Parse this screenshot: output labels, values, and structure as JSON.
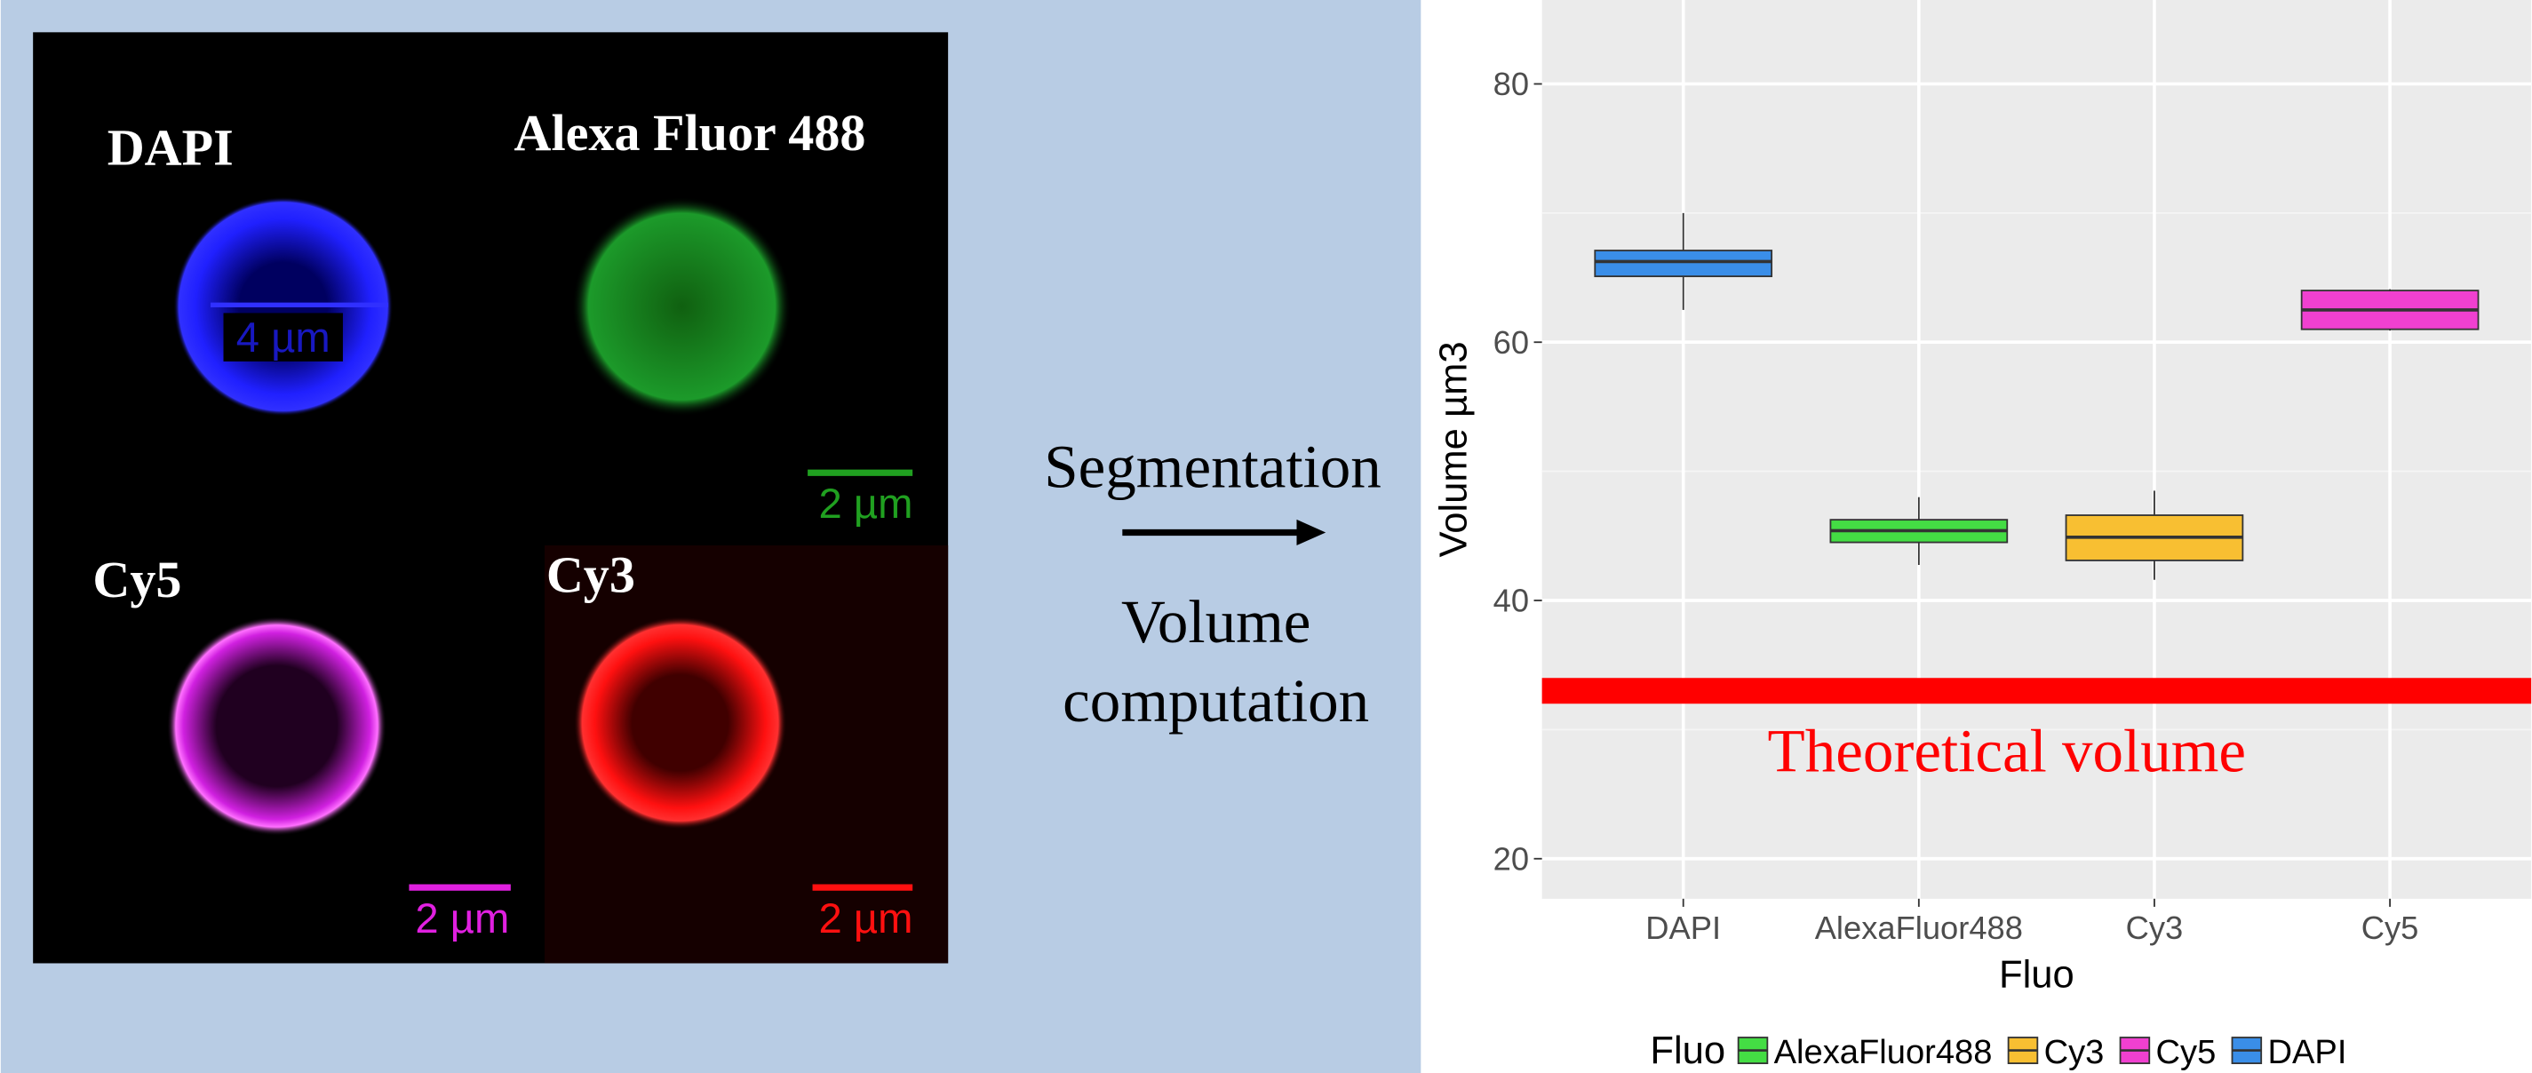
{
  "microscopy": {
    "panels": [
      "DAPI",
      "Alexa Fluor 488",
      "Cy5",
      "Cy3"
    ],
    "scale_labels": [
      "4 µm",
      "2 µm",
      "2 µm",
      "2 µm"
    ]
  },
  "process": {
    "step1": "Segmentation",
    "step2_line1": "Volume",
    "step2_line2": "computation"
  },
  "chart_data": {
    "type": "box",
    "x_label": "Fluo",
    "y_label": "Volume µm3",
    "categories": [
      "DAPI",
      "AlexaFluor488",
      "Cy3",
      "Cy5"
    ],
    "series": [
      {
        "name": "DAPI",
        "color": "#3a8ee8",
        "min": 62.5,
        "q1": 65.1,
        "median": 66.25,
        "q3": 67.1,
        "max": 70
      },
      {
        "name": "AlexaFluor488",
        "color": "#44dd44",
        "min": 42.75,
        "q1": 44.5,
        "median": 45.4,
        "q3": 46.25,
        "max": 48
      },
      {
        "name": "Cy3",
        "color": "#f8bf32",
        "min": 41.6,
        "q1": 43.1,
        "median": 44.9,
        "q3": 46.6,
        "max": 48.5
      },
      {
        "name": "Cy5",
        "color": "#f040d0",
        "min": 60.9,
        "q1": 61,
        "median": 62.5,
        "q3": 64,
        "max": 64.1
      }
    ],
    "ylim": [
      16.9,
      86.5
    ],
    "yticks": [
      20,
      40,
      60,
      80
    ],
    "grid": true,
    "legend_title": "Fluo",
    "legend": [
      "AlexaFluor488",
      "Cy3",
      "Cy5",
      "DAPI"
    ],
    "legend_position": "bottom",
    "reference_line": {
      "value": 33,
      "label": "Theoretical volume",
      "color": "#ff0000"
    }
  }
}
